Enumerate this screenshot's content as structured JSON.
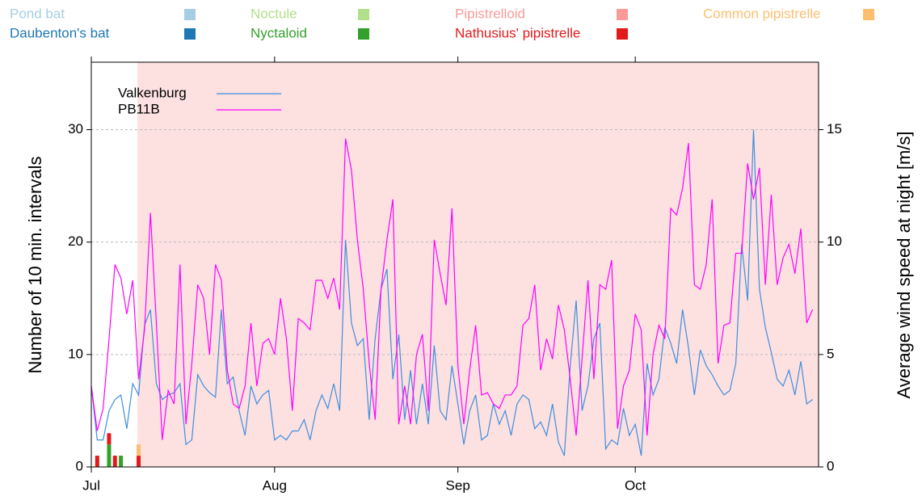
{
  "chart_data": [
    {
      "type": "bar",
      "stacked": true,
      "x": [
        1,
        3,
        4,
        5,
        8
      ],
      "ylim": [
        0,
        36
      ],
      "yticks": [
        0,
        10,
        20,
        30
      ],
      "ylabel": "Number of 10 min. intervals",
      "grid": true,
      "series": [
        {
          "name": "Pond bat",
          "color": "#a6cee3",
          "values": [
            0,
            0,
            0,
            0,
            0
          ]
        },
        {
          "name": "Daubenton's bat",
          "color": "#1f78b4",
          "values": [
            0,
            0,
            0,
            0,
            0
          ]
        },
        {
          "name": "Noctule",
          "color": "#b2df8a",
          "values": [
            0,
            0,
            0,
            0,
            0
          ]
        },
        {
          "name": "Nyctaloid",
          "color": "#33a02c",
          "values": [
            0,
            2,
            0,
            1,
            0
          ]
        },
        {
          "name": "Pipistrelloid",
          "color": "#fb9a99",
          "values": [
            0,
            0,
            0,
            0,
            0
          ]
        },
        {
          "name": "Nathusius' pipistrelle",
          "color": "#e31a1c",
          "values": [
            1,
            1,
            1,
            0,
            1
          ]
        },
        {
          "name": "Common pipistrelle",
          "color": "#fdbf6f",
          "values": [
            0,
            0,
            0,
            0,
            1
          ]
        }
      ]
    },
    {
      "type": "line",
      "xlim": [
        0,
        123
      ],
      "xticks": [
        {
          "value": 0,
          "label": "Jul"
        },
        {
          "value": 31,
          "label": "Aug"
        },
        {
          "value": 62,
          "label": "Sep"
        },
        {
          "value": 92,
          "label": "Oct"
        }
      ],
      "y2lim": [
        0,
        18
      ],
      "y2ticks": [
        0,
        5,
        10,
        15
      ],
      "y2label": "Average wind speed at night [m/s]",
      "shade": {
        "x": [
          7.8,
          123
        ],
        "color": "#fde0e0"
      },
      "x": [
        0,
        1,
        2,
        3,
        4,
        5,
        6,
        7,
        8,
        9,
        10,
        11,
        12,
        13,
        14,
        15,
        16,
        17,
        18,
        19,
        20,
        21,
        22,
        23,
        24,
        25,
        26,
        27,
        28,
        29,
        30,
        31,
        32,
        33,
        34,
        35,
        36,
        37,
        38,
        39,
        40,
        41,
        42,
        43,
        44,
        45,
        46,
        47,
        48,
        49,
        50,
        51,
        52,
        53,
        54,
        55,
        56,
        57,
        58,
        59,
        60,
        61,
        62,
        63,
        64,
        65,
        66,
        67,
        68,
        69,
        70,
        71,
        72,
        73,
        74,
        75,
        76,
        77,
        78,
        79,
        80,
        81,
        82,
        83,
        84,
        85,
        86,
        87,
        88,
        89,
        90,
        91,
        92,
        93,
        94,
        95,
        96,
        97,
        98,
        99,
        100,
        101,
        102,
        103,
        104,
        105,
        106,
        107,
        108,
        109,
        110,
        111,
        112,
        113,
        114,
        115,
        116,
        117,
        118,
        119,
        120,
        121,
        122
      ],
      "series": [
        {
          "name": "Valkenburg",
          "color": "#3d8fe0",
          "axis": "y2",
          "values": [
            3.6,
            1.2,
            1.2,
            2.5,
            3.0,
            3.2,
            1.7,
            3.7,
            3.2,
            6.3,
            7.0,
            3.7,
            3.0,
            3.2,
            3.3,
            3.7,
            1.0,
            1.2,
            4.1,
            3.6,
            3.3,
            3.1,
            7.0,
            3.7,
            4.0,
            2.5,
            1.4,
            3.6,
            2.8,
            3.2,
            3.4,
            1.2,
            1.4,
            1.2,
            1.6,
            1.6,
            2.1,
            1.2,
            2.5,
            3.2,
            2.6,
            3.7,
            2.5,
            10.1,
            6.4,
            5.4,
            5.7,
            2.1,
            5.7,
            7.9,
            8.8,
            3.9,
            5.9,
            2.1,
            4.3,
            1.9,
            3.7,
            1.9,
            5.4,
            2.5,
            2.1,
            4.5,
            2.8,
            1.0,
            2.5,
            3.2,
            1.2,
            1.4,
            2.8,
            1.9,
            2.5,
            1.4,
            2.8,
            3.2,
            3.0,
            1.7,
            2.0,
            1.4,
            2.8,
            1.1,
            0.5,
            4.5,
            7.4,
            2.5,
            3.6,
            5.7,
            6.4,
            0.8,
            1.2,
            1.0,
            2.6,
            1.4,
            1.9,
            0.5,
            4.6,
            3.2,
            3.9,
            6.2,
            5.5,
            4.6,
            7.0,
            5.3,
            3.2,
            5.2,
            4.5,
            4.1,
            3.6,
            3.2,
            3.4,
            4.6,
            9.9,
            7.4,
            15.0,
            7.9,
            6.2,
            5.1,
            3.9,
            3.6,
            4.3,
            3.2,
            4.7,
            2.8,
            3.0
          ]
        },
        {
          "name": "PB11B",
          "color": "#ff00ff",
          "axis": "y2",
          "values": [
            3.6,
            1.6,
            2.6,
            5.7,
            9.0,
            8.4,
            6.8,
            8.3,
            3.9,
            6.1,
            11.3,
            6.4,
            1.2,
            3.4,
            2.8,
            9.0,
            1.9,
            4.6,
            8.1,
            7.5,
            5.0,
            9.0,
            8.3,
            4.3,
            2.8,
            2.6,
            3.6,
            6.4,
            3.6,
            5.5,
            5.7,
            5.0,
            7.5,
            5.7,
            2.5,
            6.6,
            6.4,
            6.1,
            8.3,
            8.3,
            7.5,
            8.4,
            7.0,
            14.6,
            13.2,
            10.1,
            7.9,
            4.6,
            2.1,
            7.9,
            10.1,
            11.9,
            1.9,
            3.6,
            1.9,
            5.0,
            5.9,
            2.5,
            10.1,
            8.6,
            7.2,
            11.5,
            4.5,
            1.9,
            4.3,
            6.3,
            3.2,
            3.3,
            2.8,
            2.6,
            3.2,
            3.2,
            3.6,
            6.3,
            6.6,
            8.1,
            4.3,
            5.7,
            4.8,
            7.2,
            6.1,
            3.9,
            1.4,
            4.8,
            8.3,
            3.9,
            8.1,
            7.9,
            9.2,
            1.7,
            3.6,
            4.3,
            6.8,
            6.1,
            1.4,
            5.0,
            6.3,
            5.7,
            11.5,
            11.2,
            12.4,
            14.4,
            8.1,
            7.9,
            9.0,
            11.9,
            4.6,
            6.3,
            6.4,
            9.5,
            9.5,
            13.5,
            11.9,
            13.3,
            8.1,
            12.1,
            8.1,
            9.3,
            9.9,
            8.6,
            10.6,
            6.4,
            7.0
          ]
        }
      ]
    }
  ]
}
